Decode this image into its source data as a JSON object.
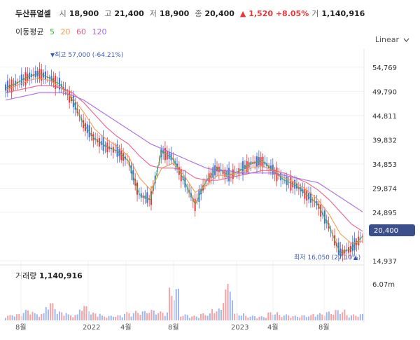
{
  "header": {
    "stock_name": "두산퓨얼셀",
    "open_label": "시",
    "open": "18,900",
    "high_label": "고",
    "high": "21,400",
    "low_label": "저",
    "low": "18,900",
    "close_label": "종",
    "close": "20,400",
    "change": "▲ 1,520 +8.05%",
    "volume_label": "거",
    "volume": "1,140,916"
  },
  "ma_legend": {
    "label": "이동평균",
    "periods": [
      {
        "text": "5",
        "color": "#3dbb3d"
      },
      {
        "text": "20",
        "color": "#f29a4a"
      },
      {
        "text": "60",
        "color": "#e85a8c"
      },
      {
        "text": "120",
        "color": "#a466e0"
      }
    ]
  },
  "scale_selector": {
    "label": "Linear"
  },
  "price_axis": {
    "ticks": [
      "54,769",
      "49,790",
      "44,811",
      "39,832",
      "34,853",
      "29,874",
      "24,895",
      "14,937"
    ],
    "current_price": "20,400"
  },
  "annotations": {
    "high": "최고 57,000 (-64.21%)",
    "low": "최저 16,050 (27.10%)"
  },
  "volume": {
    "title": "거래량",
    "value": "1,140,916",
    "axis_tick": "6.07m"
  },
  "x_axis": {
    "labels": [
      "8월",
      "2022",
      "4월",
      "8월",
      "2023",
      "4월",
      "8월"
    ]
  },
  "chart_data": {
    "type": "line",
    "series": [
      {
        "name": "5",
        "values": [
          50500,
          51500,
          52800,
          53500,
          52500,
          51000,
          48000,
          43000,
          40000,
          38500,
          37500,
          35500,
          28500,
          27500,
          37500,
          36000,
          31500,
          26500,
          31500,
          34000,
          32500,
          33500,
          35000,
          35500,
          33500,
          31500,
          30500,
          28500,
          26500,
          22000,
          16500,
          17500,
          20000
        ]
      },
      {
        "name": "20",
        "values": [
          50000,
          51000,
          52000,
          52500,
          52000,
          50500,
          48500,
          45500,
          42000,
          40000,
          38500,
          36500,
          32000,
          29500,
          34000,
          35000,
          32500,
          29000,
          30500,
          32500,
          32500,
          33000,
          34000,
          34500,
          33500,
          32000,
          31000,
          29500,
          27500,
          24500,
          20500,
          18500,
          19000
        ]
      },
      {
        "name": "60",
        "values": [
          49500,
          50000,
          50500,
          51000,
          51000,
          50500,
          49500,
          47500,
          45000,
          42500,
          40500,
          39000,
          36500,
          34500,
          34000,
          34000,
          33500,
          32000,
          31500,
          31500,
          32000,
          32500,
          33000,
          33500,
          33500,
          33000,
          32000,
          31000,
          29500,
          27500,
          25000,
          22500,
          21000
        ]
      },
      {
        "name": "120",
        "values": [
          48000,
          48500,
          49000,
          49500,
          49500,
          49500,
          49000,
          48000,
          46500,
          45000,
          43500,
          42000,
          40500,
          39000,
          38000,
          37000,
          36000,
          35000,
          34000,
          33500,
          33500,
          33000,
          33000,
          33000,
          33000,
          32500,
          32000,
          31500,
          31000,
          29500,
          28000,
          26500,
          25000
        ]
      }
    ],
    "volume": [
      0.9,
      1.1,
      1.8,
      1.2,
      3.0,
      1.5,
      1.0,
      2.5,
      1.3,
      0.8,
      0.9,
      1.4,
      1.6,
      1.8,
      1.5,
      5.5,
      1.0,
      0.8,
      1.2,
      2.0,
      6.1,
      1.2,
      0.8,
      0.7,
      1.4,
      1.0,
      0.8,
      0.9,
      1.2,
      1.5,
      1.8,
      1.0,
      1.1
    ],
    "ylim": [
      14937,
      58500
    ],
    "y_ticks": [
      54769,
      49790,
      44811,
      39832,
      34853,
      29874,
      24895,
      14937
    ],
    "current_price": 20400,
    "high": 57000,
    "low": 16050
  }
}
